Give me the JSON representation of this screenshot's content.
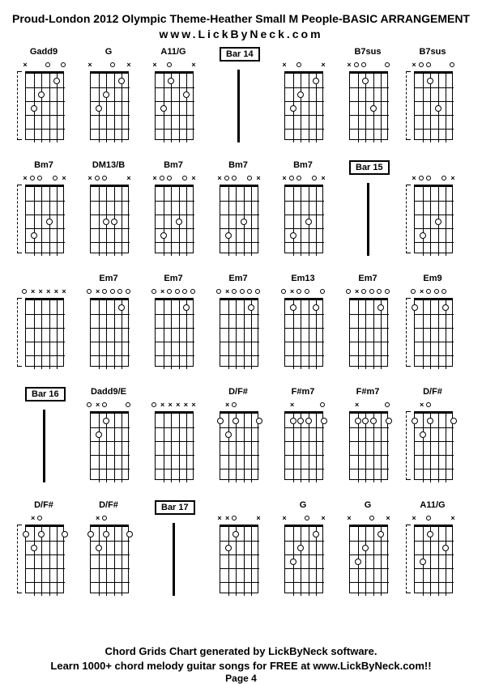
{
  "title": "Proud-London 2012 Olympic Theme-Heather Small M People-BASIC ARRANGEMENT",
  "subtitle": "www.LickByNeck.com",
  "footer1": "Chord Grids Chart generated by LickByNeck software.",
  "footer2": "Learn 1000+ chord melody guitar songs for FREE at www.LickByNeck.com!!",
  "page": "Page 4",
  "frets": 5,
  "strings": 6,
  "rows": [
    [
      {
        "type": "chord",
        "label": "Gadd9",
        "bracket": true,
        "markers": [
          "x",
          " ",
          " ",
          "o",
          " ",
          "o"
        ],
        "dots": [
          [
            4,
            1
          ],
          [
            2,
            2
          ],
          [
            1,
            3
          ]
        ]
      },
      {
        "type": "chord",
        "label": "G",
        "markers": [
          "x",
          " ",
          " ",
          "o",
          " ",
          "x"
        ],
        "dots": [
          [
            4,
            1
          ],
          [
            2,
            2
          ],
          [
            1,
            3
          ]
        ]
      },
      {
        "type": "chord",
        "label": "A11/G",
        "markers": [
          "x",
          " ",
          "o",
          " ",
          " ",
          "x"
        ],
        "dots": [
          [
            2,
            1
          ],
          [
            4,
            2
          ],
          [
            1,
            3
          ]
        ]
      },
      {
        "type": "bar",
        "label": "Bar 14"
      },
      {
        "type": "chord",
        "label": "",
        "markers": [
          "x",
          " ",
          "o",
          " ",
          " ",
          "x"
        ],
        "dots": [
          [
            4,
            1
          ],
          [
            2,
            2
          ],
          [
            1,
            3
          ]
        ]
      },
      {
        "type": "chord",
        "label": "B7sus",
        "markers": [
          "x",
          "o",
          "o",
          " ",
          " ",
          "o"
        ],
        "dots": [
          [
            2,
            1
          ],
          [
            3,
            3
          ]
        ]
      },
      {
        "type": "chord",
        "label": "B7sus",
        "bracket": true,
        "markers": [
          "x",
          "o",
          "o",
          " ",
          " ",
          "o"
        ],
        "dots": [
          [
            2,
            1
          ],
          [
            3,
            3
          ]
        ]
      }
    ],
    [
      {
        "type": "chord",
        "label": "Bm7",
        "bracket": true,
        "markers": [
          "x",
          "o",
          "o",
          " ",
          "o",
          "x"
        ],
        "dots": [
          [
            3,
            3
          ],
          [
            1,
            4
          ]
        ]
      },
      {
        "type": "chord",
        "label": "DM13/B",
        "markers": [
          "x",
          "o",
          "o",
          " ",
          " ",
          "x"
        ],
        "dots": [
          [
            2,
            3
          ],
          [
            3,
            3
          ]
        ]
      },
      {
        "type": "chord",
        "label": "Bm7",
        "markers": [
          "x",
          "o",
          "o",
          " ",
          "o",
          "x"
        ],
        "dots": [
          [
            3,
            3
          ],
          [
            1,
            4
          ]
        ]
      },
      {
        "type": "chord",
        "label": "Bm7",
        "markers": [
          "x",
          "o",
          "o",
          " ",
          "o",
          "x"
        ],
        "dots": [
          [
            3,
            3
          ],
          [
            1,
            4
          ]
        ]
      },
      {
        "type": "chord",
        "label": "Bm7",
        "markers": [
          "x",
          "o",
          "o",
          " ",
          "o",
          "x"
        ],
        "dots": [
          [
            3,
            3
          ],
          [
            1,
            4
          ]
        ]
      },
      {
        "type": "bar",
        "label": "Bar 15"
      },
      {
        "type": "chord",
        "label": "",
        "bracket": true,
        "markers": [
          "x",
          "o",
          "o",
          " ",
          "o",
          "x"
        ],
        "dots": [
          [
            3,
            3
          ],
          [
            1,
            4
          ]
        ]
      }
    ],
    [
      {
        "type": "chord",
        "label": "",
        "bracket": true,
        "markers": [
          "o",
          "x",
          "x",
          "x",
          "x",
          "x"
        ],
        "dots": []
      },
      {
        "type": "chord",
        "label": "Em7",
        "markers": [
          "o",
          "x",
          "o",
          "o",
          "o",
          "o"
        ],
        "dots": [
          [
            4,
            1
          ]
        ]
      },
      {
        "type": "chord",
        "label": "Em7",
        "markers": [
          "o",
          "x",
          "o",
          "o",
          "o",
          "o"
        ],
        "dots": [
          [
            4,
            1
          ]
        ]
      },
      {
        "type": "chord",
        "label": "Em7",
        "markers": [
          "o",
          "x",
          "o",
          "o",
          "o",
          "o"
        ],
        "dots": [
          [
            4,
            1
          ]
        ]
      },
      {
        "type": "chord",
        "label": "Em13",
        "markers": [
          "o",
          "x",
          "o",
          "o",
          " ",
          "o"
        ],
        "dots": [
          [
            4,
            1
          ],
          [
            1,
            1
          ]
        ]
      },
      {
        "type": "chord",
        "label": "Em7",
        "markers": [
          "o",
          "x",
          "o",
          "o",
          "o",
          "o"
        ],
        "dots": [
          [
            4,
            1
          ]
        ]
      },
      {
        "type": "chord",
        "label": "Em9",
        "bracket": true,
        "markers": [
          "o",
          "x",
          "o",
          "o",
          "o",
          " "
        ],
        "dots": [
          [
            4,
            1
          ],
          [
            0,
            1
          ]
        ]
      }
    ],
    [
      {
        "type": "bar",
        "label": "Bar 16"
      },
      {
        "type": "chord",
        "label": "Dadd9/E",
        "markers": [
          "o",
          "x",
          "o",
          " ",
          " ",
          "o"
        ],
        "dots": [
          [
            2,
            1
          ],
          [
            1,
            2
          ]
        ]
      },
      {
        "type": "chord",
        "label": "",
        "markers": [
          "o",
          "x",
          "x",
          "x",
          "x",
          "x"
        ],
        "dots": []
      },
      {
        "type": "chord",
        "label": "D/F#",
        "markers": [
          " ",
          "x",
          "o",
          " ",
          " ",
          " "
        ],
        "dots": [
          [
            5,
            1
          ],
          [
            2,
            1
          ],
          [
            1,
            2
          ],
          [
            0,
            1
          ]
        ]
      },
      {
        "type": "chord",
        "label": "F#m7",
        "markers": [
          " ",
          "x",
          " ",
          " ",
          " ",
          "o"
        ],
        "dots": [
          [
            5,
            1
          ],
          [
            3,
            1
          ],
          [
            2,
            1
          ],
          [
            1,
            1
          ]
        ]
      },
      {
        "type": "chord",
        "label": "F#m7",
        "markers": [
          " ",
          "x",
          " ",
          " ",
          " ",
          "o"
        ],
        "dots": [
          [
            5,
            1
          ],
          [
            3,
            1
          ],
          [
            2,
            1
          ],
          [
            1,
            1
          ]
        ]
      },
      {
        "type": "chord",
        "label": "D/F#",
        "bracket": true,
        "markers": [
          " ",
          "x",
          "o",
          " ",
          " ",
          " "
        ],
        "dots": [
          [
            5,
            1
          ],
          [
            2,
            1
          ],
          [
            1,
            2
          ],
          [
            0,
            1
          ]
        ]
      }
    ],
    [
      {
        "type": "chord",
        "label": "D/F#",
        "bracket": true,
        "markers": [
          " ",
          "x",
          "o",
          " ",
          " ",
          " "
        ],
        "dots": [
          [
            5,
            1
          ],
          [
            2,
            1
          ],
          [
            1,
            2
          ],
          [
            0,
            1
          ]
        ]
      },
      {
        "type": "chord",
        "label": "D/F#",
        "markers": [
          " ",
          "x",
          "o",
          " ",
          " ",
          " "
        ],
        "dots": [
          [
            5,
            1
          ],
          [
            2,
            1
          ],
          [
            1,
            2
          ],
          [
            0,
            1
          ]
        ]
      },
      {
        "type": "bar",
        "label": "Bar 17"
      },
      {
        "type": "chord",
        "label": "",
        "markers": [
          "x",
          "x",
          "o",
          " ",
          " ",
          "x"
        ],
        "dots": [
          [
            2,
            1
          ],
          [
            1,
            2
          ]
        ]
      },
      {
        "type": "chord",
        "label": "G",
        "markers": [
          "x",
          " ",
          " ",
          "o",
          " ",
          "x"
        ],
        "dots": [
          [
            4,
            1
          ],
          [
            2,
            2
          ],
          [
            1,
            3
          ]
        ]
      },
      {
        "type": "chord",
        "label": "G",
        "markers": [
          "x",
          " ",
          " ",
          "o",
          " ",
          "x"
        ],
        "dots": [
          [
            4,
            1
          ],
          [
            2,
            2
          ],
          [
            1,
            3
          ]
        ]
      },
      {
        "type": "chord",
        "label": "A11/G",
        "bracket": true,
        "markers": [
          "x",
          " ",
          "o",
          " ",
          " ",
          "x"
        ],
        "dots": [
          [
            2,
            1
          ],
          [
            4,
            2
          ],
          [
            1,
            3
          ]
        ]
      }
    ]
  ]
}
